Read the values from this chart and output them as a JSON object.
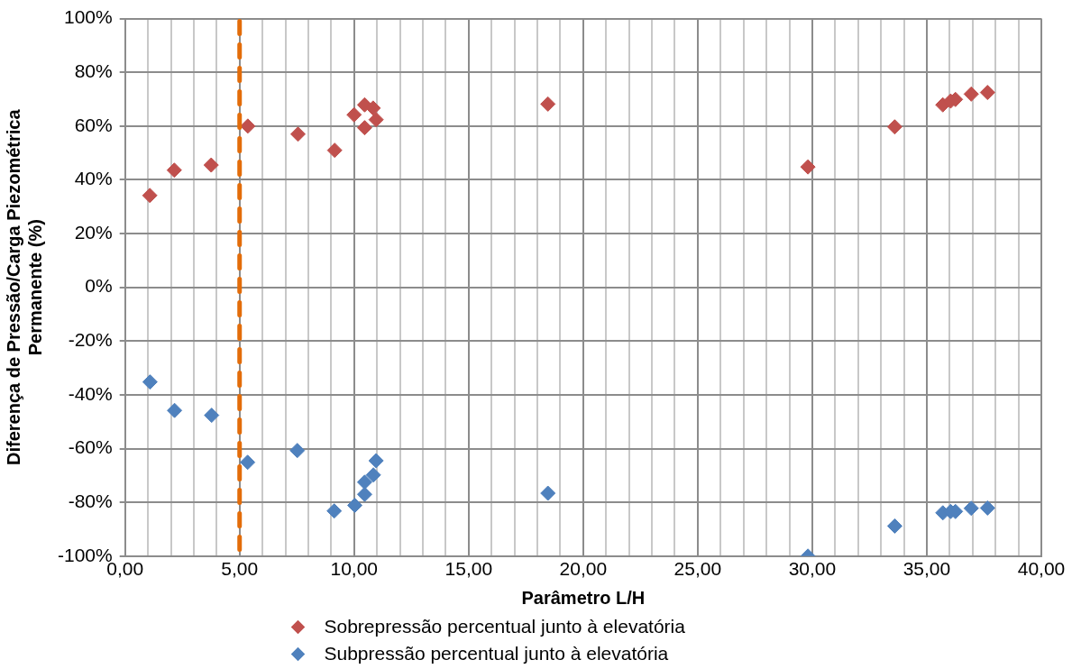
{
  "chart_data": {
    "type": "scatter",
    "xlabel": "Parâmetro L/H",
    "ylabel": "Diferença de Pressão/Carga Piezométrica Permanente (%)",
    "marker": "diamond",
    "grid": true,
    "legend": "bottom",
    "xlim": [
      0,
      40
    ],
    "ylim": [
      -100,
      100
    ],
    "xticks": [
      {
        "value": 0,
        "label": "0,00"
      },
      {
        "value": 1,
        "label": null
      },
      {
        "value": 2,
        "label": null
      },
      {
        "value": 3,
        "label": null
      },
      {
        "value": 4,
        "label": null
      },
      {
        "value": 5,
        "label": "5,00"
      },
      {
        "value": 6,
        "label": null
      },
      {
        "value": 7,
        "label": null
      },
      {
        "value": 8,
        "label": null
      },
      {
        "value": 9,
        "label": null
      },
      {
        "value": 10,
        "label": "10,00"
      },
      {
        "value": 11,
        "label": null
      },
      {
        "value": 12,
        "label": null
      },
      {
        "value": 13,
        "label": null
      },
      {
        "value": 14,
        "label": null
      },
      {
        "value": 15,
        "label": "15,00"
      },
      {
        "value": 16,
        "label": null
      },
      {
        "value": 17,
        "label": null
      },
      {
        "value": 18,
        "label": null
      },
      {
        "value": 19,
        "label": null
      },
      {
        "value": 20,
        "label": "20,00"
      },
      {
        "value": 21,
        "label": null
      },
      {
        "value": 22,
        "label": null
      },
      {
        "value": 23,
        "label": null
      },
      {
        "value": 24,
        "label": null
      },
      {
        "value": 25,
        "label": "25,00"
      },
      {
        "value": 26,
        "label": null
      },
      {
        "value": 27,
        "label": null
      },
      {
        "value": 28,
        "label": null
      },
      {
        "value": 29,
        "label": null
      },
      {
        "value": 30,
        "label": "30,00"
      },
      {
        "value": 31,
        "label": null
      },
      {
        "value": 32,
        "label": null
      },
      {
        "value": 33,
        "label": null
      },
      {
        "value": 34,
        "label": null
      },
      {
        "value": 35,
        "label": "35,00"
      },
      {
        "value": 36,
        "label": null
      },
      {
        "value": 37,
        "label": null
      },
      {
        "value": 38,
        "label": null
      },
      {
        "value": 39,
        "label": null
      },
      {
        "value": 40,
        "label": "40,00"
      }
    ],
    "yticks": [
      {
        "value": -100,
        "label": "-100%"
      },
      {
        "value": -80,
        "label": "-80%"
      },
      {
        "value": -60,
        "label": "-60%"
      },
      {
        "value": -40,
        "label": "-40%"
      },
      {
        "value": -20,
        "label": "-20%"
      },
      {
        "value": 0,
        "label": "0%"
      },
      {
        "value": 20,
        "label": "20%"
      },
      {
        "value": 40,
        "label": "40%"
      },
      {
        "value": 60,
        "label": "60%"
      },
      {
        "value": 80,
        "label": "80%"
      },
      {
        "value": 100,
        "label": "100%"
      }
    ],
    "ref_lines": [
      {
        "axis": "x",
        "value": 5,
        "color": "#e36c09",
        "line_style": "dashed"
      }
    ],
    "series": [
      {
        "name": "Sobrepressão percentual junto à elevatória",
        "color": "#c0504d",
        "x": [
          1.08,
          2.15,
          3.76,
          5.36,
          7.55,
          9.15,
          10.0,
          10.46,
          10.46,
          10.83,
          10.96,
          18.46,
          29.81,
          33.6,
          35.7,
          36.04,
          36.25,
          36.94,
          37.65
        ],
        "values": [
          34.2,
          43.6,
          45.5,
          60,
          57,
          51,
          64.2,
          67.9,
          59.4,
          66.7,
          62.4,
          68.2,
          44.8,
          59.7,
          67.9,
          69.3,
          69.9,
          71.9,
          72.5
        ]
      },
      {
        "name": "Subpressão percentual junto à elevatória",
        "color": "#4f81bd",
        "x": [
          1.09,
          2.16,
          3.78,
          5.35,
          7.52,
          9.13,
          10.03,
          10.46,
          10.46,
          10.84,
          10.96,
          18.46,
          29.81,
          33.6,
          35.7,
          36.04,
          36.25,
          36.94,
          37.65
        ],
        "values": [
          -35.2,
          -45.8,
          -47.6,
          -65.1,
          -60.7,
          -83.2,
          -81.1,
          -72.5,
          -77,
          -69.8,
          -64.5,
          -76.6,
          -100,
          -88.8,
          -83.9,
          -83.4,
          -83.4,
          -82.2,
          -82.1
        ]
      }
    ]
  }
}
